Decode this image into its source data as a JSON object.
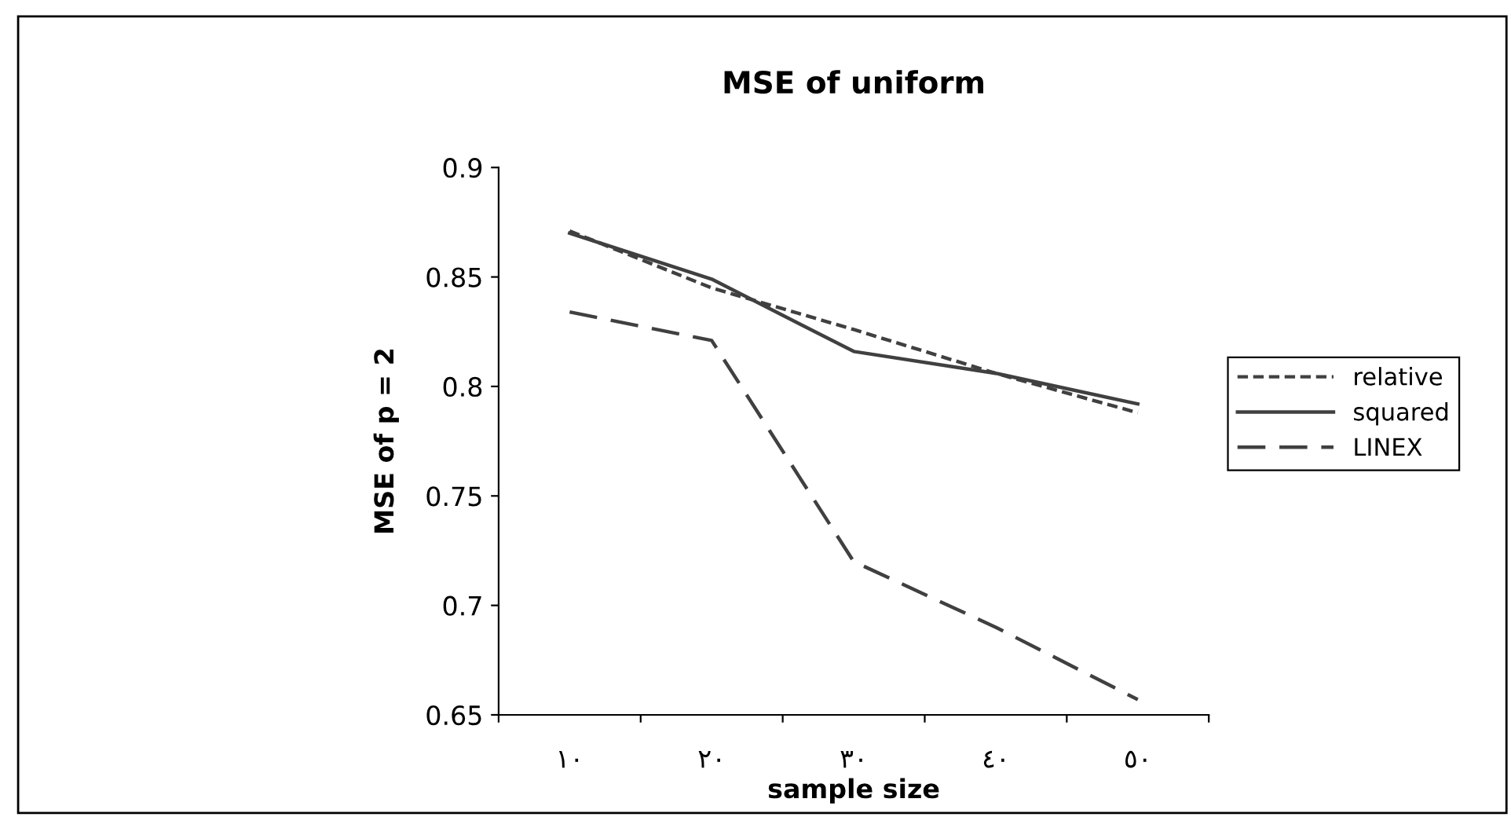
{
  "chart_data": {
    "type": "line",
    "title": "MSE of uniform",
    "xlabel": "sample size",
    "ylabel": "MSE of p = 2",
    "categories": [
      "١٠",
      "٢٠",
      "٣٠",
      "٤٠",
      "٥٠"
    ],
    "series": [
      {
        "name": "relative",
        "color": "#404040",
        "line_style": "dotted",
        "values": [
          0.871,
          0.845,
          0.826,
          0.806,
          0.788
        ]
      },
      {
        "name": "squared",
        "color": "#404040",
        "line_style": "solid",
        "values": [
          0.87,
          0.849,
          0.816,
          0.806,
          0.792
        ]
      },
      {
        "name": "LINEX",
        "color": "#404040",
        "line_style": "dashed",
        "values": [
          0.834,
          0.821,
          0.72,
          0.69,
          0.657
        ]
      }
    ],
    "ylim": [
      0.65,
      0.9
    ],
    "yticks": [
      0.65,
      0.7,
      0.75,
      0.8,
      0.85,
      0.9
    ],
    "grid": false,
    "legend": "right",
    "marker": "none"
  }
}
